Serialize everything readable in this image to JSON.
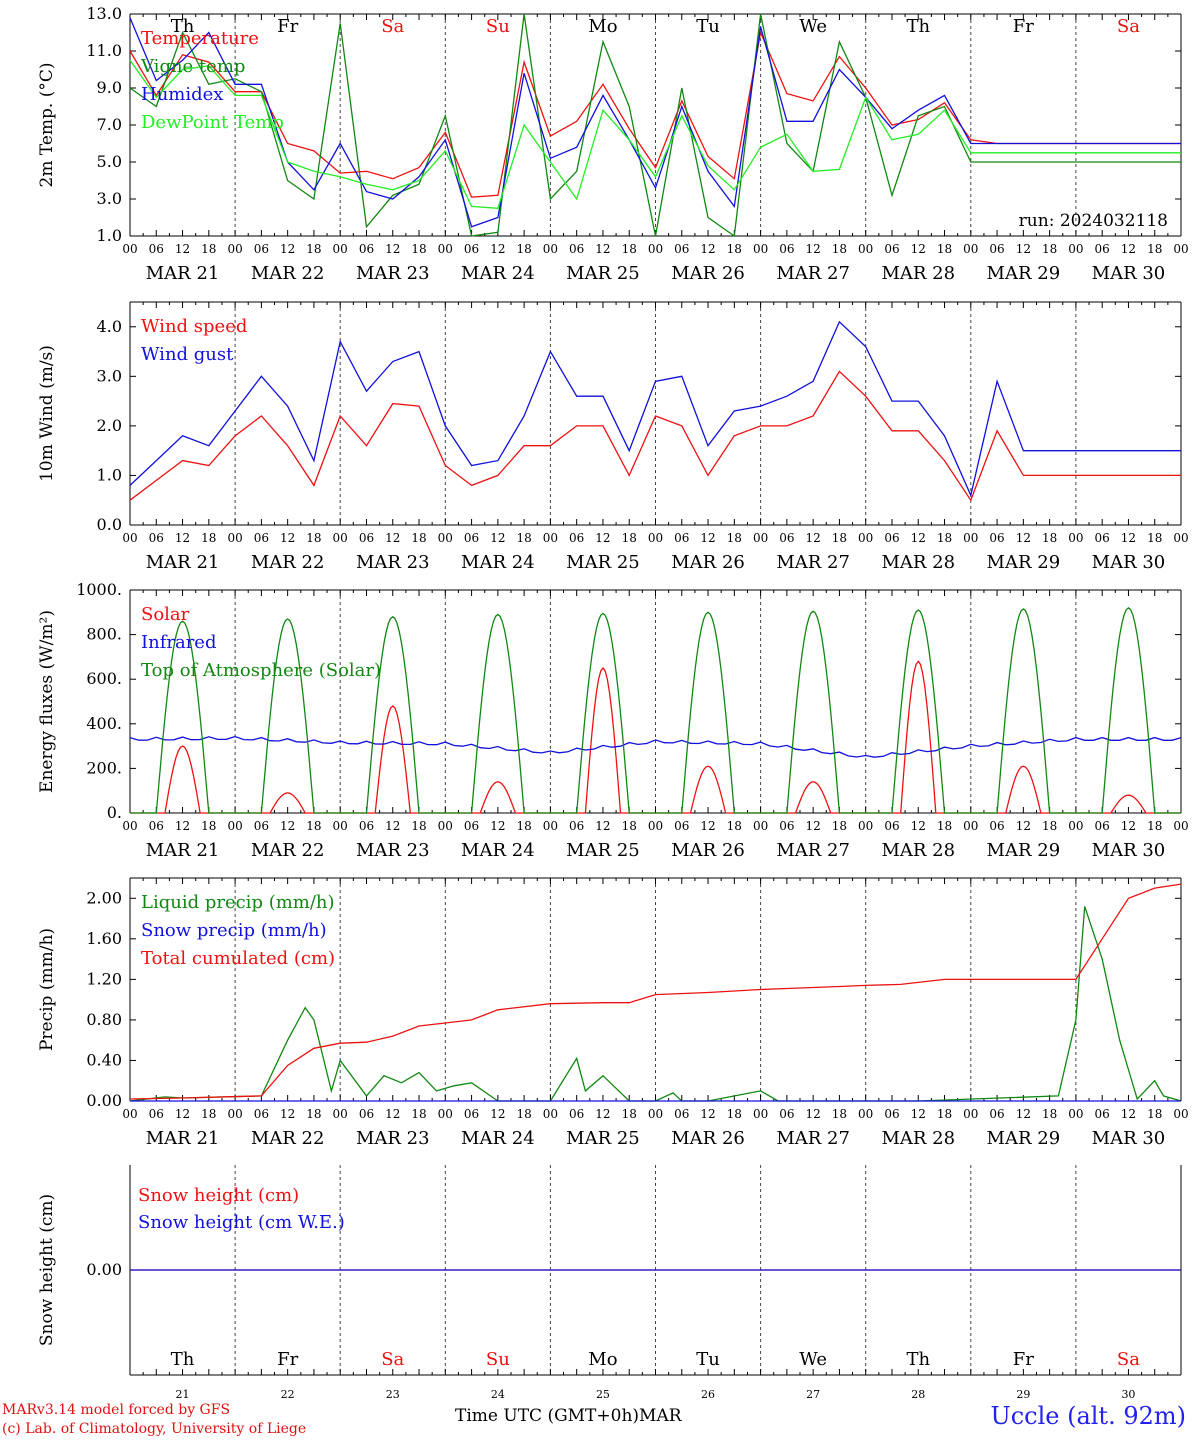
{
  "chart_data": [
    {
      "type": "line",
      "ylabel": "2m Temp. (°C)",
      "ylim": [
        1.0,
        13.0
      ],
      "yticks": [
        "13.0",
        "11.0",
        "9.0",
        "7.0",
        "5.0",
        "3.0",
        "1.0"
      ],
      "run_label": "run: 2024032118",
      "x_unit": "hours since MAR 21 00 UTC",
      "series": [
        {
          "name": "Temperature",
          "color": "#ee1111",
          "x": [
            0,
            6,
            12,
            18,
            24,
            30,
            36,
            42,
            48,
            54,
            60,
            66,
            72,
            78,
            84,
            90,
            96,
            102,
            108,
            114,
            120,
            126,
            132,
            138,
            144,
            150,
            156,
            162,
            168,
            174,
            180,
            186,
            192,
            198,
            204,
            210,
            216,
            222,
            228,
            234,
            240
          ],
          "y": [
            11.0,
            8.6,
            10.8,
            10.4,
            8.8,
            8.8,
            6.0,
            5.6,
            4.4,
            4.5,
            4.1,
            4.7,
            6.6,
            3.1,
            3.2,
            10.4,
            6.4,
            7.2,
            9.2,
            6.8,
            4.7,
            8.3,
            5.3,
            4.1,
            12.0,
            8.7,
            8.3,
            10.7,
            9.0,
            7.0,
            7.3,
            8.2,
            6.2,
            6.0,
            6.0,
            6.0,
            6.0,
            6.0,
            6.0,
            6.0,
            6.0
          ]
        },
        {
          "name": "Vigne temp",
          "color": "#118811",
          "x": [
            0,
            6,
            12,
            18,
            24,
            30,
            36,
            42,
            48,
            54,
            60,
            66,
            72,
            78,
            84,
            90,
            96,
            102,
            108,
            114,
            120,
            126,
            132,
            138,
            144,
            150,
            156,
            162,
            168,
            174,
            180,
            186,
            192,
            198,
            204,
            210,
            216,
            222,
            228,
            234,
            240
          ],
          "y": [
            9.0,
            8.0,
            12.0,
            9.2,
            9.5,
            8.8,
            4.0,
            3.0,
            12.5,
            1.5,
            3.2,
            3.8,
            7.5,
            1.0,
            1.2,
            13.0,
            3.0,
            4.5,
            11.5,
            8.0,
            1.0,
            9.0,
            2.0,
            1.0,
            13.0,
            6.0,
            4.5,
            11.5,
            8.5,
            3.2,
            7.5,
            8.0,
            5.0,
            5.0,
            5.0,
            5.0,
            5.0,
            5.0,
            5.0,
            5.0,
            5.0
          ]
        },
        {
          "name": "Humidex",
          "color": "#1111dd",
          "x": [
            0,
            6,
            12,
            18,
            24,
            30,
            36,
            42,
            48,
            54,
            60,
            66,
            72,
            78,
            84,
            90,
            96,
            102,
            108,
            114,
            120,
            126,
            132,
            138,
            144,
            150,
            156,
            162,
            168,
            174,
            180,
            186,
            192,
            198,
            204,
            210,
            216,
            222,
            228,
            234,
            240
          ],
          "y": [
            12.8,
            9.4,
            10.5,
            12.0,
            9.2,
            9.2,
            5.0,
            3.5,
            6.0,
            3.4,
            3.0,
            4.2,
            6.2,
            1.5,
            2.0,
            9.8,
            5.2,
            5.8,
            8.6,
            6.2,
            3.6,
            8.0,
            4.5,
            2.6,
            12.3,
            7.2,
            7.2,
            10.0,
            8.5,
            6.8,
            7.8,
            8.6,
            6.0,
            6.0,
            6.0,
            6.0,
            6.0,
            6.0,
            6.0,
            6.0,
            6.0
          ]
        },
        {
          "name": "DewPoint Temp",
          "color": "#22ee22",
          "x": [
            0,
            6,
            12,
            18,
            24,
            30,
            36,
            42,
            48,
            54,
            60,
            66,
            72,
            78,
            84,
            90,
            96,
            102,
            108,
            114,
            120,
            126,
            132,
            138,
            144,
            150,
            156,
            162,
            168,
            174,
            180,
            186,
            192,
            198,
            204,
            210,
            216,
            222,
            228,
            234,
            240
          ],
          "y": [
            10.5,
            8.5,
            10.0,
            10.2,
            8.6,
            8.6,
            5.0,
            4.5,
            4.2,
            3.8,
            3.5,
            4.0,
            5.6,
            2.6,
            2.5,
            7.0,
            5.0,
            3.0,
            7.8,
            6.2,
            4.2,
            7.5,
            4.8,
            3.5,
            5.8,
            6.5,
            4.5,
            4.6,
            8.5,
            6.2,
            6.5,
            7.8,
            5.5,
            5.5,
            5.5,
            5.5,
            5.5,
            5.5,
            5.5,
            5.5,
            5.5
          ]
        }
      ]
    },
    {
      "type": "line",
      "ylabel": "10m Wind (m/s)",
      "ylim": [
        0.0,
        4.5
      ],
      "yticks": [
        "4.0",
        "3.0",
        "2.0",
        "1.0",
        "0.0"
      ],
      "series": [
        {
          "name": "Wind speed",
          "color": "#ee1111",
          "x": [
            0,
            6,
            12,
            18,
            24,
            30,
            36,
            42,
            48,
            54,
            60,
            66,
            72,
            78,
            84,
            90,
            96,
            102,
            108,
            114,
            120,
            126,
            132,
            138,
            144,
            150,
            156,
            162,
            168,
            174,
            180,
            186,
            192,
            198,
            204,
            210,
            216,
            222,
            228,
            234,
            240
          ],
          "y": [
            0.5,
            0.9,
            1.3,
            1.2,
            1.8,
            2.2,
            1.6,
            0.8,
            2.2,
            1.6,
            2.45,
            2.4,
            1.2,
            0.8,
            1.0,
            1.6,
            1.6,
            2.0,
            2.0,
            1.0,
            2.2,
            2.0,
            1.0,
            1.8,
            2.0,
            2.0,
            2.2,
            3.1,
            2.6,
            1.9,
            1.9,
            1.3,
            0.5,
            1.9,
            1.0,
            1.0,
            1.0,
            1.0,
            1.0,
            1.0,
            1.0
          ]
        },
        {
          "name": "Wind gust",
          "color": "#1111dd",
          "x": [
            0,
            6,
            12,
            18,
            24,
            30,
            36,
            42,
            48,
            54,
            60,
            66,
            72,
            78,
            84,
            90,
            96,
            102,
            108,
            114,
            120,
            126,
            132,
            138,
            144,
            150,
            156,
            162,
            168,
            174,
            180,
            186,
            192,
            198,
            204,
            210,
            216,
            222,
            228,
            234,
            240
          ],
          "y": [
            0.8,
            1.3,
            1.8,
            1.6,
            2.3,
            3.0,
            2.4,
            1.3,
            3.7,
            2.7,
            3.3,
            3.5,
            2.0,
            1.2,
            1.3,
            2.2,
            3.5,
            2.6,
            2.6,
            1.5,
            2.9,
            3.0,
            1.6,
            2.3,
            2.4,
            2.6,
            2.9,
            4.1,
            3.6,
            2.5,
            2.5,
            1.8,
            0.6,
            2.9,
            1.5,
            1.5,
            1.5,
            1.5,
            1.5,
            1.5,
            1.5
          ]
        }
      ]
    },
    {
      "type": "line",
      "ylabel": "Energy fluxes (W/m²)",
      "ylim": [
        0,
        1000
      ],
      "yticks": [
        "1000.",
        "800.",
        "600.",
        "400.",
        "200.",
        "0."
      ],
      "series": [
        {
          "name": "Solar",
          "color": "#ee1111",
          "peaks": [
            300,
            90,
            480,
            140,
            650,
            210,
            140,
            680,
            210,
            80
          ]
        },
        {
          "name": "Infrared",
          "color": "#1111dd",
          "levels": [
            330,
            335,
            315,
            310,
            270,
            320,
            310,
            250,
            300,
            330
          ]
        },
        {
          "name": "Top of Atmosphere (Solar)",
          "color": "#118811",
          "peaks": [
            860,
            870,
            880,
            890,
            895,
            900,
            905,
            910,
            915,
            920
          ]
        }
      ]
    },
    {
      "type": "line",
      "ylabel": "Precip (mm/h)",
      "ylim": [
        0.0,
        2.2
      ],
      "yticks": [
        "2.00",
        "1.60",
        "1.20",
        "0.80",
        "0.40",
        "0.00"
      ],
      "series": [
        {
          "name": "Liquid precip (mm/h)",
          "color": "#118811",
          "x": [
            0,
            8,
            12,
            30,
            36,
            40,
            42,
            46,
            48,
            54,
            58,
            62,
            66,
            70,
            74,
            78,
            84,
            96,
            102,
            104,
            108,
            114,
            120,
            124,
            126,
            130,
            132,
            144,
            148,
            168,
            172,
            180,
            212,
            216,
            218,
            222,
            226,
            230,
            234,
            236,
            240
          ],
          "y": [
            0.0,
            0.04,
            0.03,
            0.05,
            0.6,
            0.92,
            0.8,
            0.1,
            0.4,
            0.05,
            0.25,
            0.18,
            0.28,
            0.1,
            0.15,
            0.18,
            0.0,
            0.0,
            0.42,
            0.1,
            0.25,
            0.0,
            0.0,
            0.08,
            0.0,
            0.0,
            0.0,
            0.1,
            0.0,
            0.0,
            0.0,
            0.0,
            0.05,
            0.8,
            1.92,
            1.4,
            0.6,
            0.02,
            0.2,
            0.05,
            0.0
          ]
        },
        {
          "name": "Snow precip (mm/h)",
          "color": "#1111dd",
          "x": [
            0,
            240
          ],
          "y": [
            0.0,
            0.0
          ]
        },
        {
          "name": "Total cumulated (cm)",
          "color": "#ee1111",
          "x": [
            0,
            12,
            30,
            36,
            42,
            48,
            54,
            60,
            66,
            72,
            78,
            84,
            96,
            108,
            114,
            120,
            132,
            144,
            150,
            162,
            168,
            176,
            180,
            186,
            204,
            210,
            216,
            222,
            228,
            234,
            240
          ],
          "y": [
            0.02,
            0.03,
            0.05,
            0.35,
            0.52,
            0.57,
            0.58,
            0.64,
            0.74,
            0.77,
            0.8,
            0.9,
            0.96,
            0.97,
            0.97,
            1.05,
            1.07,
            1.1,
            1.11,
            1.13,
            1.14,
            1.15,
            1.17,
            1.2,
            1.2,
            1.2,
            1.2,
            1.6,
            2.0,
            2.1,
            2.14
          ]
        }
      ]
    },
    {
      "type": "line",
      "ylabel": "Snow height (cm)",
      "ylim": [
        -1.0,
        1.0
      ],
      "yticks": [
        "0.00"
      ],
      "series": [
        {
          "name": "Snow height (cm)",
          "color": "#ee1111",
          "x": [
            0,
            240
          ],
          "y": [
            0.0,
            0.0
          ]
        },
        {
          "name": "Snow height (cm W.E.)",
          "color": "#1111dd",
          "x": [
            0,
            240
          ],
          "y": [
            0.0,
            0.0
          ]
        }
      ]
    }
  ],
  "x_axis": {
    "hour_labels": [
      "00",
      "06",
      "12",
      "18"
    ],
    "end_label": "00",
    "dates": [
      "MAR 21",
      "MAR 22",
      "MAR 23",
      "MAR 24",
      "MAR 25",
      "MAR 26",
      "MAR 27",
      "MAR 28",
      "MAR 29",
      "MAR 30"
    ],
    "weekdays": [
      "Th",
      "Fr",
      "Sa",
      "Su",
      "Mo",
      "Tu",
      "We",
      "Th",
      "Fr",
      "Sa"
    ],
    "weekend_flags": [
      false,
      false,
      true,
      true,
      false,
      false,
      false,
      false,
      false,
      true
    ],
    "day_numbers": [
      "21",
      "22",
      "23",
      "24",
      "25",
      "26",
      "27",
      "28",
      "29",
      "30"
    ]
  },
  "colors": {
    "weekday": "#000000",
    "weekend": "#ee1111"
  },
  "footer": {
    "credit_line1": "MARv3.14 model forced by GFS",
    "credit_line2": "(c) Lab. of Climatology, University of Liege",
    "xtitle": "Time UTC (GMT+0h)MAR",
    "station": "Uccle (alt. 92m)"
  }
}
